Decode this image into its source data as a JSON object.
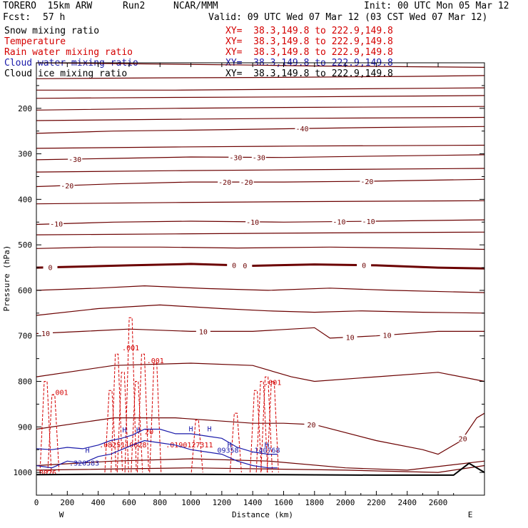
{
  "header": {
    "model": "TORERO  15km ARW",
    "run": "Run2",
    "center": "NCAR/MMM",
    "init": "Init: 00 UTC Mon 05 Mar 12",
    "fcst_label": "Fcst:",
    "fcst_value": "57 h",
    "valid": "Valid: 09 UTC Wed 07 Mar 12 (03 CST Wed 07 Mar 12)"
  },
  "fields": [
    {
      "name": "Snow mixing ratio",
      "xy": "XY=  38.3,149.8 to 222.9,149.8",
      "color": "#000000"
    },
    {
      "name": "Temperature",
      "xy": "XY=  38.3,149.8 to 222.9,149.8",
      "color": "#d40000"
    },
    {
      "name": "Rain water mixing ratio",
      "xy": "XY=  38.3,149.8 to 222.9,149.8",
      "color": "#d40000"
    },
    {
      "name": "Cloud water mixing ratio",
      "xy": "XY=  38.3,149.8 to 222.9,149.8",
      "color": "#1a1aaa"
    },
    {
      "name": "Cloud ice mixing ratio",
      "xy": "XY=  38.3,149.8 to 222.9,149.8",
      "color": "#000000"
    }
  ],
  "chart_data": {
    "type": "line",
    "xlabel": "Distance (km)",
    "ylabel": "Pressure (hPa)",
    "xlim": [
      0,
      2900
    ],
    "ylim": [
      1050,
      100
    ],
    "xticks": [
      0,
      200,
      400,
      600,
      800,
      1000,
      1200,
      1400,
      1600,
      1800,
      2000,
      2200,
      2400,
      2600
    ],
    "yticks": [
      200,
      300,
      400,
      500,
      600,
      700,
      800,
      900,
      1000
    ],
    "ytick_labels": [
      "200",
      "300",
      "400",
      "500",
      "600",
      "700",
      "800",
      "900",
      "1000"
    ],
    "endpoints": {
      "left": "W",
      "right": "E"
    },
    "colors": {
      "temperature": "#6b0000",
      "rain": "#d40000",
      "cloud_water": "#1a1aaa",
      "terrain": "#000000"
    },
    "temperature_contours": [
      {
        "label": "-40",
        "x": [
          0,
          500,
          1000,
          1600,
          2200,
          2900
        ],
        "p": [
          255,
          250,
          248,
          245,
          242,
          240
        ],
        "label_pos": [
          1720
        ]
      },
      {
        "label": "-30",
        "x": [
          0,
          500,
          1000,
          1600,
          2200,
          2900
        ],
        "p": [
          313,
          310,
          307,
          308,
          305,
          302
        ],
        "label_pos": [
          250,
          1290,
          1440
        ]
      },
      {
        "label": "-20",
        "x": [
          0,
          500,
          1000,
          1600,
          2200,
          2900
        ],
        "p": [
          372,
          366,
          362,
          362,
          360,
          356
        ],
        "label_pos": [
          200,
          1220,
          1360,
          2140
        ]
      },
      {
        "label": "-10",
        "x": [
          0,
          500,
          1000,
          1600,
          2200,
          2900
        ],
        "p": [
          455,
          450,
          448,
          450,
          448,
          445
        ],
        "label_pos": [
          130,
          1400,
          1960,
          2150
        ]
      },
      {
        "label": "0",
        "x": [
          0,
          600,
          1000,
          1400,
          1800,
          2200,
          2600,
          2900
        ],
        "p": [
          550,
          545,
          542,
          546,
          543,
          545,
          550,
          552
        ],
        "label_pos": [
          90,
          1280,
          1350,
          2120
        ],
        "bold": true
      },
      {
        "label": "10",
        "x": [
          0,
          300,
          600,
          1000,
          1400,
          1800,
          1900,
          2200,
          2600,
          2900
        ],
        "p": [
          695,
          690,
          685,
          690,
          690,
          682,
          705,
          700,
          690,
          690
        ],
        "label_pos": [
          60,
          1080,
          2030,
          2270
        ]
      },
      {
        "label": "20",
        "x": [
          0,
          500,
          900,
          1400,
          1600,
          1800,
          2200,
          2500,
          2600,
          2750,
          2850,
          2900
        ],
        "p": [
          905,
          880,
          880,
          892,
          892,
          895,
          930,
          950,
          960,
          930,
          880,
          870
        ],
        "label_pos": [
          1780,
          2760
        ]
      }
    ],
    "extra_isotherms": [
      {
        "x": [
          0,
          1400,
          1800,
          2200,
          2900
        ],
        "p": [
          100,
          105,
          107,
          108,
          110
        ]
      },
      {
        "x": [
          0,
          800,
          1600,
          2400,
          2900
        ],
        "p": [
          135,
          133,
          132,
          130,
          128
        ]
      },
      {
        "x": [
          0,
          900,
          1700,
          2900
        ],
        "p": [
          160,
          160,
          158,
          155
        ]
      },
      {
        "x": [
          0,
          900,
          1700,
          2900
        ],
        "p": [
          178,
          176,
          175,
          172
        ]
      },
      {
        "x": [
          0,
          900,
          1700,
          2900
        ],
        "p": [
          204,
          200,
          198,
          196
        ]
      },
      {
        "x": [
          0,
          900,
          1700,
          2900
        ],
        "p": [
          227,
          224,
          222,
          220
        ]
      },
      {
        "x": [
          0,
          900,
          1700,
          2900
        ],
        "p": [
          288,
          285,
          283,
          281
        ]
      },
      {
        "x": [
          0,
          900,
          1700,
          2900
        ],
        "p": [
          340,
          337,
          335,
          332
        ]
      },
      {
        "x": [
          0,
          900,
          1700,
          2900
        ],
        "p": [
          410,
          407,
          405,
          403
        ]
      },
      {
        "x": [
          0,
          900,
          1700,
          2900
        ],
        "p": [
          478,
          476,
          474,
          472
        ]
      },
      {
        "x": [
          0,
          400,
          800,
          1300,
          1900,
          2400,
          2900
        ],
        "p": [
          508,
          505,
          505,
          507,
          505,
          507,
          510
        ]
      },
      {
        "x": [
          0,
          400,
          700,
          1100,
          1500,
          1900,
          2300,
          2900
        ],
        "p": [
          600,
          595,
          590,
          596,
          600,
          595,
          600,
          605
        ]
      },
      {
        "x": [
          0,
          400,
          800,
          1200,
          1500,
          1800,
          2100,
          2500,
          2900
        ],
        "p": [
          655,
          640,
          632,
          640,
          645,
          648,
          645,
          648,
          650
        ]
      },
      {
        "x": [
          0,
          500,
          1000,
          1400,
          1650,
          1800,
          2200,
          2600,
          2900
        ],
        "p": [
          790,
          765,
          760,
          765,
          790,
          800,
          790,
          780,
          800
        ]
      },
      {
        "x": [
          0,
          500,
          1000,
          1500,
          2000,
          2400,
          2900
        ],
        "p": [
          985,
          975,
          970,
          975,
          990,
          995,
          975
        ]
      },
      {
        "x": [
          0,
          1000,
          2000,
          2600,
          2900
        ],
        "p": [
          995,
          990,
          995,
          1000,
          985
        ]
      }
    ],
    "terrain": {
      "x": [
        0,
        400,
        1000,
        1600,
        2200,
        2500,
        2700,
        2800,
        2900
      ],
      "p": [
        1005,
        1004,
        1004,
        1005,
        1006,
        1006,
        1006,
        980,
        1000
      ]
    },
    "rain_labels": [
      {
        "text": ".001",
        "x": 150,
        "p": 830
      },
      {
        "text": ".001",
        "x": 610,
        "p": 732
      },
      {
        "text": ".001",
        "x": 770,
        "p": 760
      },
      {
        "text": ".001",
        "x": 1530,
        "p": 808
      },
      {
        "text": ".0825110628",
        "x": 560,
        "p": 945
      },
      {
        "text": ".0190127311",
        "x": 990,
        "p": 945
      },
      {
        "text": "20",
        "x": 730,
        "p": 916
      },
      {
        "text": ".0076",
        "x": 60,
        "p": 1006
      }
    ],
    "cloud_labels": [
      {
        "text": ".320583",
        "x": 310,
        "p": 985
      },
      {
        "text": "09358",
        "x": 1240,
        "p": 957
      },
      {
        "text": ".140768",
        "x": 1480,
        "p": 957
      },
      {
        "text": "H",
        "x": 570,
        "p": 912
      },
      {
        "text": "H",
        "x": 660,
        "p": 912
      },
      {
        "text": "H",
        "x": 1000,
        "p": 910
      },
      {
        "text": "H",
        "x": 1120,
        "p": 910
      },
      {
        "text": "H",
        "x": 1250,
        "p": 945
      },
      {
        "text": "H",
        "x": 1490,
        "p": 945
      },
      {
        "text": "H",
        "x": 330,
        "p": 957
      }
    ]
  }
}
